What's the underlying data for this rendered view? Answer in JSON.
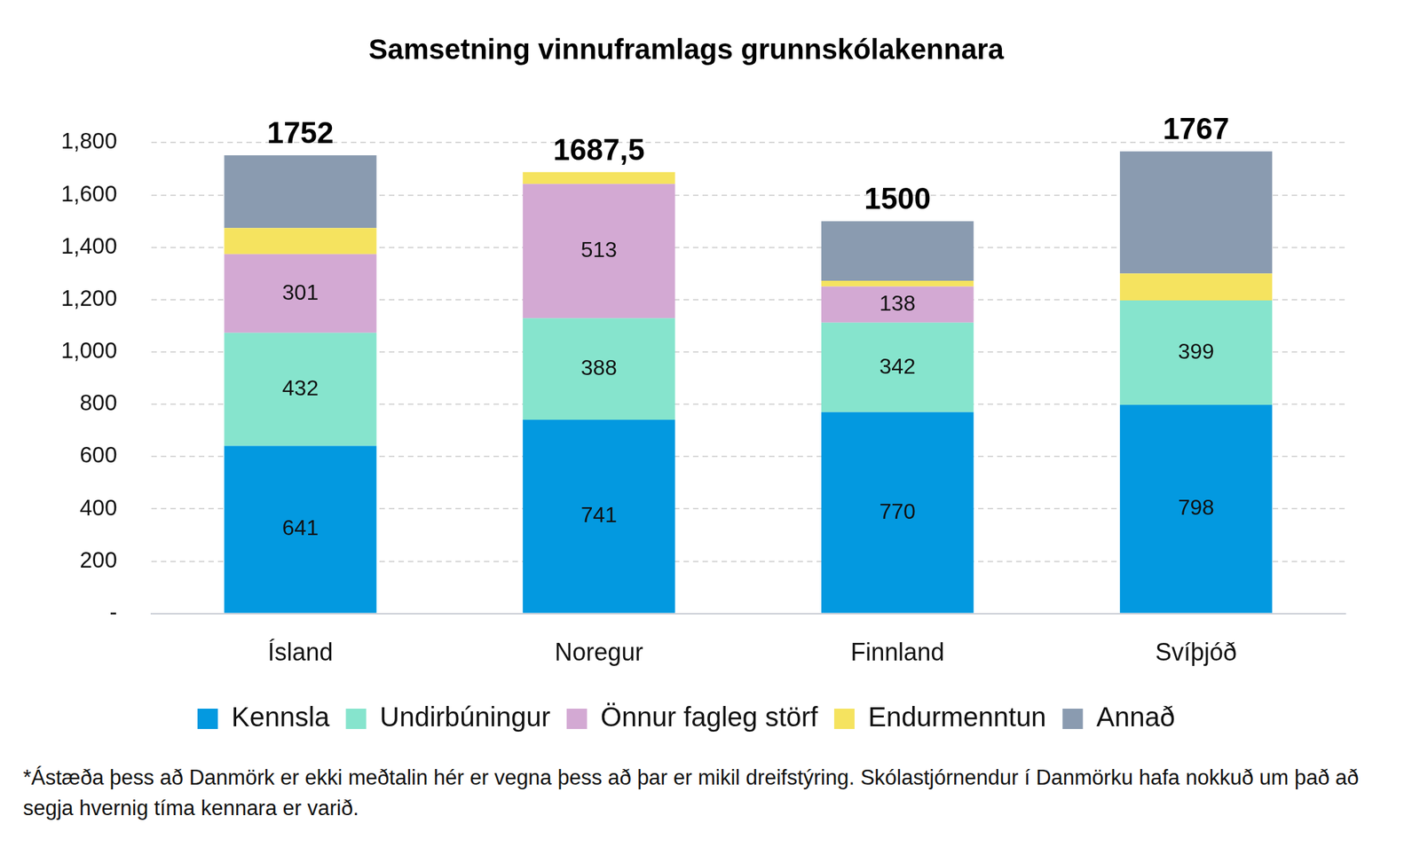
{
  "chart_data": {
    "type": "bar",
    "title": "Samsetning vinnuframlags grunnskólakennara",
    "categories": [
      "Ísland",
      "Noregur",
      "Finnland",
      "Svíþjóð"
    ],
    "stacked": true,
    "grid": true,
    "legend": "bottom",
    "series": [
      {
        "name": "Kennsla",
        "color": "#0399e0",
        "values": [
          641,
          741,
          770,
          798
        ],
        "data_labels": true
      },
      {
        "name": "Undirbúningur",
        "color": "#86e4cd",
        "values": [
          432,
          388,
          342,
          399
        ],
        "data_labels": true
      },
      {
        "name": "Önnur fagleg störf",
        "color": "#d3a9d3",
        "values": [
          301,
          513,
          138,
          null
        ],
        "data_labels": true
      },
      {
        "name": "Endurmenntun",
        "color": "#f5e35f",
        "values": [
          100,
          45.5,
          22,
          103
        ],
        "data_labels": false
      },
      {
        "name": "Annað",
        "color": "#8a9bb0",
        "values": [
          278,
          null,
          228,
          467
        ],
        "data_labels": false
      }
    ],
    "totals": [
      1752,
      1687.5,
      1500,
      1767
    ],
    "total_labels": [
      "1752",
      "1687,5",
      "1500",
      "1767"
    ],
    "ylim": [
      0,
      1800
    ],
    "yticks": [
      {
        "value": 0,
        "label": "-"
      },
      200,
      400,
      600,
      800,
      {
        "value": 1000,
        "label": "1,000"
      },
      {
        "value": 1200,
        "label": "1,200"
      },
      {
        "value": 1400,
        "label": "1,400"
      },
      {
        "value": 1600,
        "label": "1,600"
      },
      {
        "value": 1800,
        "label": "1,800"
      }
    ],
    "footnote": "*Ástæða þess að Danmörk er ekki meðtalin hér er vegna þess að þar er mikil dreifstýring. Skólastjórnendur í Danmörku hafa nokkuð um það að segja hvernig tíma kennara er varið."
  }
}
